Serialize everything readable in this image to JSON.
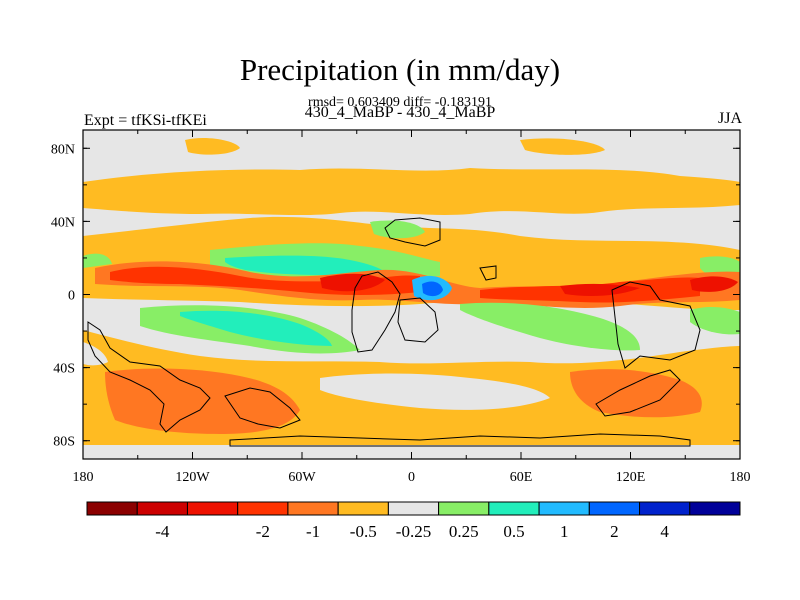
{
  "chart_data": {
    "type": "heatmap",
    "title": "Precipitation (in mm/day)",
    "stats_text": "rmsd= 0.603409 diff= -0.183191",
    "subtitle": "430_4_MaBP - 430_4_MaBP",
    "left_label": "Expt = tfKSi-tfKEi",
    "right_label": "JJA",
    "x_range": [
      -180,
      180
    ],
    "y_range": [
      -90,
      90
    ],
    "x_ticks": [
      {
        "value": -180,
        "label": "180"
      },
      {
        "value": -120,
        "label": "120W"
      },
      {
        "value": -60,
        "label": "60W"
      },
      {
        "value": 0,
        "label": "0"
      },
      {
        "value": 60,
        "label": "60E"
      },
      {
        "value": 120,
        "label": "120E"
      },
      {
        "value": 180,
        "label": "180"
      }
    ],
    "y_ticks": [
      {
        "value": 80,
        "label": "80N"
      },
      {
        "value": 40,
        "label": "40N"
      },
      {
        "value": 0,
        "label": "0"
      },
      {
        "value": -40,
        "label": "40S"
      },
      {
        "value": -80,
        "label": "80S"
      }
    ],
    "colorbar": {
      "colors": [
        "#8b0000",
        "#cc0000",
        "#ee1100",
        "#ff3300",
        "#ff7722",
        "#ffbb22",
        "#e6e6e6",
        "#88ee66",
        "#22eebb",
        "#22bbff",
        "#0066ff",
        "#0022cc",
        "#000099"
      ],
      "labels": [
        "-4",
        "-2",
        "-1",
        "-0.5",
        "-0.25",
        "0.25",
        "0.5",
        "1",
        "2",
        "4"
      ],
      "label_slots": [
        1,
        3,
        4,
        5,
        6,
        7,
        8,
        9,
        10,
        11
      ]
    },
    "colors": {
      "land_outline": "#000000",
      "neutral": "#e6e6e6"
    }
  }
}
